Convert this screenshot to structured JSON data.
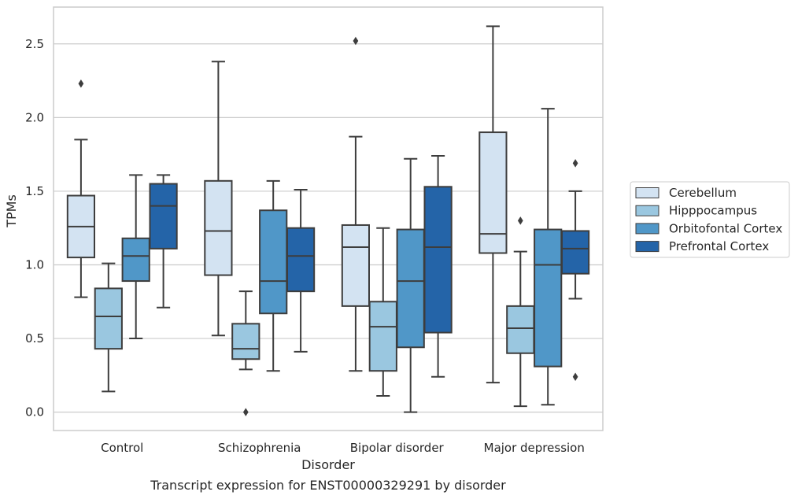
{
  "chart_data": {
    "type": "box",
    "caption": "Transcript expression for ENST00000329291 by disorder",
    "xlabel": "Disorder",
    "ylabel": "TPMs",
    "ylim": [
      -0.125,
      2.75
    ],
    "yticks": [
      "0.0",
      "0.5",
      "1.0",
      "1.5",
      "2.0",
      "2.5"
    ],
    "grid": true,
    "legend_position": "right-outside",
    "categories": [
      "Control",
      "Schizophrenia",
      "Bipolar disorder",
      "Major depression"
    ],
    "series": [
      {
        "name": "Cerebellum",
        "color": "#d3e3f2",
        "boxes": [
          {
            "whisker_low": 0.78,
            "q1": 1.05,
            "median": 1.26,
            "q3": 1.47,
            "whisker_high": 1.85,
            "outliers": [
              2.23
            ]
          },
          {
            "whisker_low": 0.52,
            "q1": 0.93,
            "median": 1.23,
            "q3": 1.57,
            "whisker_high": 2.38,
            "outliers": []
          },
          {
            "whisker_low": 0.28,
            "q1": 0.72,
            "median": 1.12,
            "q3": 1.27,
            "whisker_high": 1.87,
            "outliers": [
              2.52
            ]
          },
          {
            "whisker_low": 0.2,
            "q1": 1.08,
            "median": 1.21,
            "q3": 1.9,
            "whisker_high": 2.62,
            "outliers": []
          }
        ]
      },
      {
        "name": "Hipppocampus",
        "color": "#9ac7e0",
        "boxes": [
          {
            "whisker_low": 0.14,
            "q1": 0.43,
            "median": 0.65,
            "q3": 0.84,
            "whisker_high": 1.01,
            "outliers": []
          },
          {
            "whisker_low": 0.29,
            "q1": 0.36,
            "median": 0.43,
            "q3": 0.6,
            "whisker_high": 0.82,
            "outliers": [
              0.0
            ]
          },
          {
            "whisker_low": 0.11,
            "q1": 0.28,
            "median": 0.58,
            "q3": 0.75,
            "whisker_high": 1.25,
            "outliers": []
          },
          {
            "whisker_low": 0.04,
            "q1": 0.4,
            "median": 0.57,
            "q3": 0.72,
            "whisker_high": 1.09,
            "outliers": [
              1.3
            ]
          }
        ]
      },
      {
        "name": "Orbitofontal Cortex",
        "color": "#5097c8",
        "boxes": [
          {
            "whisker_low": 0.5,
            "q1": 0.89,
            "median": 1.06,
            "q3": 1.18,
            "whisker_high": 1.61,
            "outliers": []
          },
          {
            "whisker_low": 0.28,
            "q1": 0.67,
            "median": 0.89,
            "q3": 1.37,
            "whisker_high": 1.57,
            "outliers": []
          },
          {
            "whisker_low": 0.0,
            "q1": 0.44,
            "median": 0.89,
            "q3": 1.24,
            "whisker_high": 1.72,
            "outliers": []
          },
          {
            "whisker_low": 0.05,
            "q1": 0.31,
            "median": 1.0,
            "q3": 1.24,
            "whisker_high": 2.06,
            "outliers": []
          }
        ]
      },
      {
        "name": "Prefrontal Cortex",
        "color": "#2464a8",
        "boxes": [
          {
            "whisker_low": 0.71,
            "q1": 1.11,
            "median": 1.4,
            "q3": 1.55,
            "whisker_high": 1.61,
            "outliers": []
          },
          {
            "whisker_low": 0.41,
            "q1": 0.82,
            "median": 1.06,
            "q3": 1.25,
            "whisker_high": 1.51,
            "outliers": []
          },
          {
            "whisker_low": 0.24,
            "q1": 0.54,
            "median": 1.12,
            "q3": 1.53,
            "whisker_high": 1.74,
            "outliers": []
          },
          {
            "whisker_low": 0.77,
            "q1": 0.94,
            "median": 1.11,
            "q3": 1.23,
            "whisker_high": 1.5,
            "outliers": [
              1.69,
              0.24
            ]
          }
        ]
      }
    ]
  }
}
